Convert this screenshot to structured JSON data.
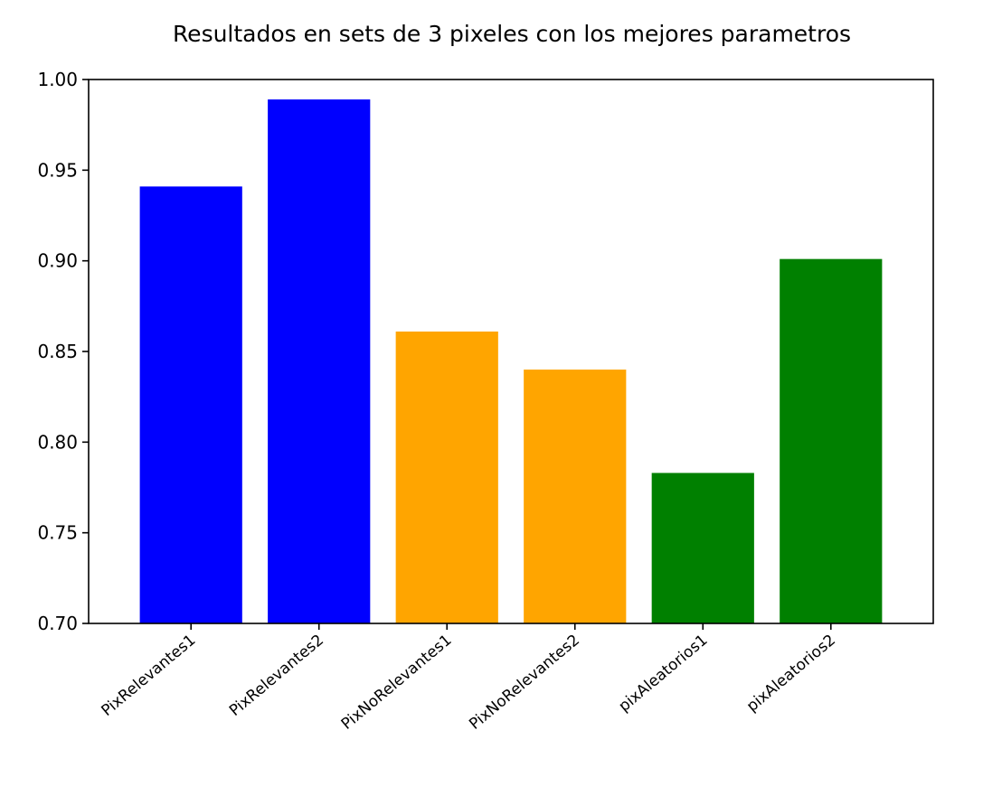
{
  "chart_data": {
    "type": "bar",
    "title": "Resultados en sets de 3 pixeles con los mejores parametros",
    "xlabel": "",
    "ylabel": "",
    "categories": [
      "PixRelevantes1",
      "PixRelevantes2",
      "PixNoRelevantes1",
      "PixNoRelevantes2",
      "pixAleatorios1",
      "pixAleatorios2"
    ],
    "values": [
      0.941,
      0.989,
      0.861,
      0.84,
      0.783,
      0.901
    ],
    "colors": [
      "#0000ff",
      "#0000ff",
      "#ffa500",
      "#ffa500",
      "#008000",
      "#008000"
    ],
    "ylim": [
      0.7,
      1.0
    ],
    "yticks": [
      "0.70",
      "0.75",
      "0.80",
      "0.85",
      "0.90",
      "0.95",
      "1.00"
    ],
    "grid": false,
    "legend": "none"
  }
}
